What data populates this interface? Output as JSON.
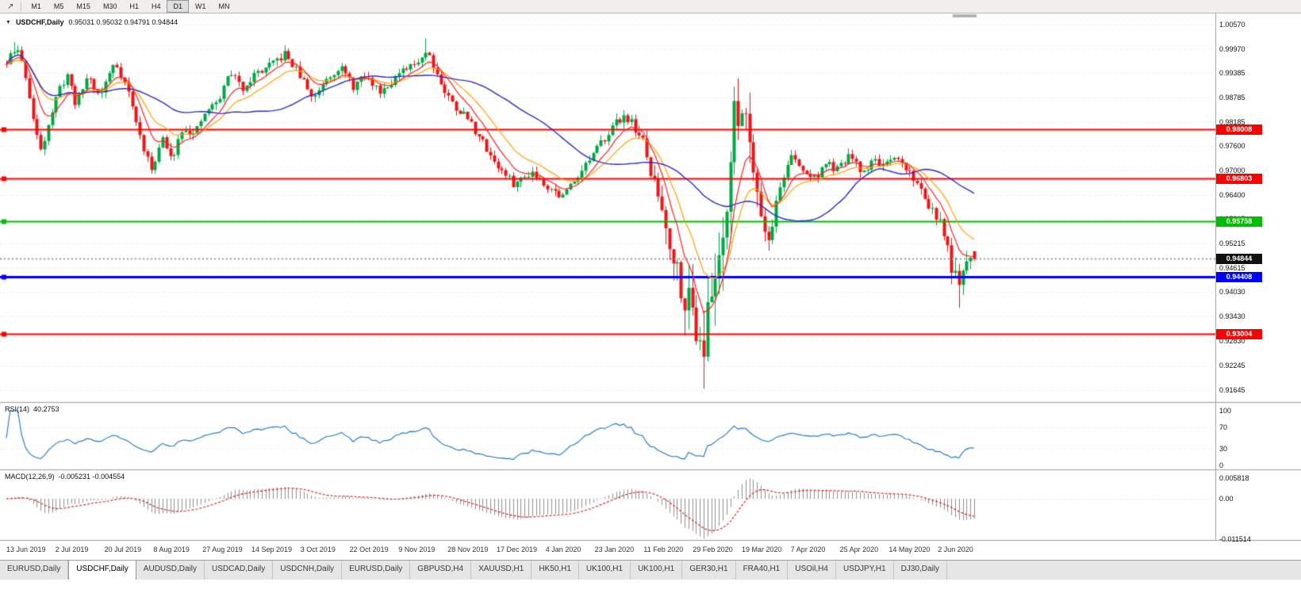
{
  "toolbar": {
    "tool_icon": "↗",
    "timeframes": [
      "M1",
      "M5",
      "M15",
      "M30",
      "H1",
      "H4",
      "D1",
      "W1",
      "MN"
    ],
    "active_timeframe": "D1"
  },
  "chart_header": {
    "collapse_icon": "▼",
    "symbol": "USDCHF,Daily",
    "ohlc": "0.95031 0.95032 0.94791 0.94844"
  },
  "chart_data": {
    "type": "candlestick",
    "symbol": "USDCHF",
    "timeframe": "Daily",
    "up_color": "#00A843",
    "down_color": "#ED1515",
    "ohlc_values": {
      "open": 0.95031,
      "high": 0.95032,
      "low": 0.94791,
      "close": 0.94844
    },
    "price_axis_ticks": [
      "1.00570",
      "0.99970",
      "0.99385",
      "0.98785",
      "0.98185",
      "0.97600",
      "0.97000",
      "0.96400",
      "0.95815",
      "0.95215",
      "0.94615",
      "0.94030",
      "0.93430",
      "0.92830",
      "0.92245",
      "0.91645"
    ],
    "date_ticks": [
      "13 Jun 2019",
      "2 Jul 2019",
      "20 Jul 2019",
      "8 Aug 2019",
      "27 Aug 2019",
      "14 Sep 2019",
      "3 Oct 2019",
      "22 Oct 2019",
      "9 Nov 2019",
      "28 Nov 2019",
      "17 Dec 2019",
      "4 Jan 2020",
      "23 Jan 2020",
      "11 Feb 2020",
      "29 Feb 2020",
      "19 Mar 2020",
      "7 Apr 2020",
      "25 Apr 2020",
      "14 May 2020",
      "2 Jun 2020"
    ],
    "levels": [
      {
        "label": "0.98008",
        "value": 0.98008,
        "color": "#FF0000",
        "width": 2
      },
      {
        "label": "0.96803",
        "value": 0.96803,
        "color": "#FF0000",
        "width": 2
      },
      {
        "label": "0.95758",
        "value": 0.95758,
        "color": "#00BE00",
        "width": 2
      },
      {
        "label": "0.94408",
        "value": 0.94408,
        "color": "#0000FF",
        "width": 3
      },
      {
        "label": "0.93004",
        "value": 0.93004,
        "color": "#FF0000",
        "width": 2
      }
    ],
    "current_price": {
      "label": "0.94844",
      "value": 0.94844,
      "color": "#000000"
    },
    "moving_averages": [
      {
        "period": 8,
        "type": "ema",
        "color": "#FF2020"
      },
      {
        "period": 16,
        "type": "ema",
        "color": "#FFA200"
      },
      {
        "period": 40,
        "type": "sma",
        "color": "#2B2BC8"
      }
    ],
    "price_path": [
      [
        0.0,
        0.996
      ],
      [
        0.005,
        0.9985
      ],
      [
        0.012,
        0.9995
      ],
      [
        0.02,
        0.993
      ],
      [
        0.03,
        0.979
      ],
      [
        0.036,
        0.9752
      ],
      [
        0.045,
        0.983
      ],
      [
        0.055,
        0.99
      ],
      [
        0.063,
        0.9935
      ],
      [
        0.072,
        0.986
      ],
      [
        0.084,
        0.9935
      ],
      [
        0.096,
        0.988
      ],
      [
        0.112,
        0.9968
      ],
      [
        0.125,
        0.99
      ],
      [
        0.137,
        0.979
      ],
      [
        0.149,
        0.97
      ],
      [
        0.161,
        0.978
      ],
      [
        0.17,
        0.9725
      ],
      [
        0.182,
        0.981
      ],
      [
        0.194,
        0.9785
      ],
      [
        0.206,
        0.9845
      ],
      [
        0.219,
        0.987
      ],
      [
        0.231,
        0.9945
      ],
      [
        0.243,
        0.99
      ],
      [
        0.256,
        0.9935
      ],
      [
        0.272,
        0.9955
      ],
      [
        0.288,
        0.9985
      ],
      [
        0.305,
        0.9925
      ],
      [
        0.317,
        0.9875
      ],
      [
        0.329,
        0.9925
      ],
      [
        0.345,
        0.9955
      ],
      [
        0.358,
        0.9905
      ],
      [
        0.37,
        0.993
      ],
      [
        0.386,
        0.9895
      ],
      [
        0.403,
        0.993
      ],
      [
        0.419,
        0.9955
      ],
      [
        0.435,
        0.9995
      ],
      [
        0.452,
        0.9895
      ],
      [
        0.464,
        0.9855
      ],
      [
        0.476,
        0.983
      ],
      [
        0.493,
        0.9765
      ],
      [
        0.509,
        0.9705
      ],
      [
        0.525,
        0.9665
      ],
      [
        0.542,
        0.97
      ],
      [
        0.558,
        0.9665
      ],
      [
        0.574,
        0.9635
      ],
      [
        0.59,
        0.969
      ],
      [
        0.607,
        0.974
      ],
      [
        0.623,
        0.98
      ],
      [
        0.639,
        0.9838
      ],
      [
        0.656,
        0.978
      ],
      [
        0.664,
        0.9705
      ],
      [
        0.676,
        0.962
      ],
      [
        0.688,
        0.95
      ],
      [
        0.7,
        0.9405
      ],
      [
        0.713,
        0.933
      ],
      [
        0.721,
        0.9285
      ],
      [
        0.729,
        0.94
      ],
      [
        0.737,
        0.952
      ],
      [
        0.745,
        0.965
      ],
      [
        0.753,
        0.984
      ],
      [
        0.761,
        0.987
      ],
      [
        0.77,
        0.975
      ],
      [
        0.778,
        0.9625
      ],
      [
        0.786,
        0.9515
      ],
      [
        0.798,
        0.965
      ],
      [
        0.81,
        0.9738
      ],
      [
        0.822,
        0.97
      ],
      [
        0.835,
        0.9682
      ],
      [
        0.847,
        0.9718
      ],
      [
        0.859,
        0.97
      ],
      [
        0.871,
        0.9738
      ],
      [
        0.884,
        0.9692
      ],
      [
        0.896,
        0.9728
      ],
      [
        0.908,
        0.971
      ],
      [
        0.92,
        0.9728
      ],
      [
        0.932,
        0.97
      ],
      [
        0.944,
        0.9655
      ],
      [
        0.957,
        0.96
      ],
      [
        0.969,
        0.9545
      ],
      [
        0.978,
        0.945
      ],
      [
        0.985,
        0.94
      ],
      [
        0.99,
        0.946
      ],
      [
        0.996,
        0.95
      ],
      [
        1.0,
        0.94844
      ]
    ]
  },
  "rsi_panel": {
    "label": "RSI(14)",
    "value": "40.2753",
    "color": "#1874CD",
    "ticks": [
      {
        "label": "100",
        "value": 100
      },
      {
        "label": "70",
        "value": 70
      },
      {
        "label": "30",
        "value": 30
      },
      {
        "label": "0",
        "value": 0
      }
    ],
    "guide_levels": [
      70,
      30
    ]
  },
  "macd_panel": {
    "label": "MACD(12,26,9)",
    "value": "-0.005231 -0.004554",
    "ticks": [
      {
        "label": "0.005818",
        "value": 0.005818
      },
      {
        "label": "0.00",
        "value": 0
      },
      {
        "label": "-0.011514",
        "value": -0.011514
      }
    ]
  },
  "tabs": [
    {
      "label": "EURUSD,Daily",
      "active": false
    },
    {
      "label": "USDCHF,Daily",
      "active": true
    },
    {
      "label": "AUDUSD,Daily",
      "active": false
    },
    {
      "label": "USDCAD,Daily",
      "active": false
    },
    {
      "label": "USDCNH,Daily",
      "active": false
    },
    {
      "label": "EURUSD,Daily",
      "active": false
    },
    {
      "label": "GBPUSD,H4",
      "active": false
    },
    {
      "label": "XAUUSD,H1",
      "active": false
    },
    {
      "label": "HK50,H1",
      "active": false
    },
    {
      "label": "UK100,H1",
      "active": false
    },
    {
      "label": "UK100,H1",
      "active": false
    },
    {
      "label": "GER30,H1",
      "active": false
    },
    {
      "label": "FRA40,H1",
      "active": false
    },
    {
      "label": "USOil,H4",
      "active": false
    },
    {
      "label": "USDJPY,H1",
      "active": false
    },
    {
      "label": "DJ30,Daily",
      "active": false
    }
  ]
}
